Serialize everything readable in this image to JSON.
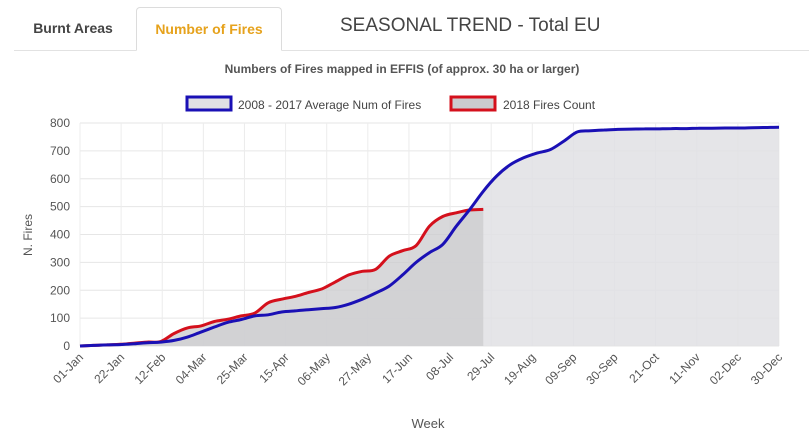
{
  "tabs": [
    {
      "label": "Burnt Areas",
      "active": false
    },
    {
      "label": "Number of Fires",
      "active": true
    }
  ],
  "page_title": "SEASONAL TREND - Total EU",
  "colors": {
    "active_tab": "#e6a21c",
    "avg_line": "#1a10b5",
    "avg_fill": "#e1e1e4",
    "fires_line": "#d4101c",
    "fires_fill": "#cbcbce"
  },
  "chart_data": {
    "type": "area",
    "title": "Numbers of Fires mapped in EFFIS (of approx. 30 ha or larger)",
    "xlabel": "Week",
    "ylabel": "N. Fires",
    "ylim": [
      0,
      800
    ],
    "yticks": [
      0,
      100,
      200,
      300,
      400,
      500,
      600,
      700,
      800
    ],
    "xticks": [
      "01-Jan",
      "22-Jan",
      "12-Feb",
      "04-Mar",
      "25-Mar",
      "15-Apr",
      "06-May",
      "27-May",
      "17-Jun",
      "08-Jul",
      "29-Jul",
      "19-Aug",
      "09-Sep",
      "30-Sep",
      "21-Oct",
      "11-Nov",
      "02-Dec",
      "30-Dec"
    ],
    "grid": true,
    "legend_position": "top",
    "series": [
      {
        "name": "2008 - 2017 Average Num of Fires",
        "day": [
          0,
          7,
          14,
          21,
          28,
          35,
          42,
          49,
          56,
          63,
          70,
          77,
          84,
          91,
          98,
          105,
          112,
          119,
          126,
          133,
          140,
          147,
          154,
          161,
          168,
          175,
          182,
          189,
          196,
          203,
          210,
          217,
          224,
          231,
          238,
          245,
          252,
          259,
          266,
          273,
          280,
          287,
          294,
          301,
          308,
          315,
          322,
          329,
          336,
          343,
          350,
          357,
          364
        ],
        "values": [
          0,
          2,
          4,
          5,
          8,
          12,
          14,
          20,
          32,
          50,
          68,
          85,
          95,
          108,
          112,
          122,
          126,
          130,
          134,
          138,
          150,
          168,
          190,
          215,
          255,
          300,
          335,
          365,
          430,
          490,
          555,
          610,
          650,
          675,
          692,
          705,
          735,
          768,
          772,
          775,
          777,
          778,
          779,
          779,
          780,
          780,
          781,
          781,
          782,
          782,
          783,
          784,
          785
        ]
      },
      {
        "name": "2018 Fires Count",
        "day": [
          0,
          7,
          14,
          21,
          28,
          35,
          42,
          49,
          56,
          63,
          70,
          77,
          84,
          91,
          98,
          105,
          112,
          119,
          126,
          133,
          140,
          147,
          154,
          161,
          168,
          175,
          182,
          189,
          196,
          203,
          210
        ],
        "values": [
          0,
          2,
          4,
          6,
          10,
          14,
          16,
          45,
          65,
          72,
          88,
          96,
          108,
          118,
          155,
          168,
          178,
          192,
          205,
          230,
          255,
          268,
          275,
          322,
          342,
          360,
          430,
          465,
          478,
          488,
          490
        ]
      }
    ]
  }
}
